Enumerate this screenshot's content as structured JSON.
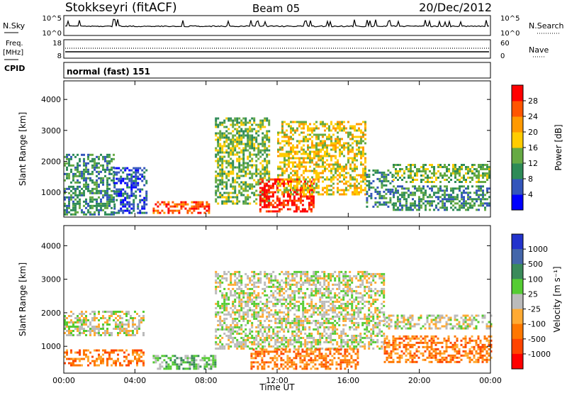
{
  "header": {
    "station": "Stokkseyri (fitACF)",
    "beam": "Beam 05",
    "date": "20/Dec/2012"
  },
  "top_panels": {
    "nsky_label": "N.Sky",
    "nsky_ticks": [
      "10^5",
      "10^0"
    ],
    "nsearch_label": "N.Search",
    "nsearch_ticks": [
      "10^5",
      "10^0"
    ],
    "freq_label": "Freq.",
    "freq_unit": "[MHz]",
    "freq_ticks": [
      "18",
      "8"
    ],
    "nave_label": "Nave",
    "nave_ticks": [
      "60",
      "0"
    ],
    "cpid_label": "CPID",
    "cpid_value": "normal (fast) 151"
  },
  "colors": {
    "power": [
      "#0000ff",
      "#3355bb",
      "#2e8b57",
      "#66aa44",
      "#ffcc00",
      "#ff9900",
      "#ff5500",
      "#ff0000"
    ],
    "velocity": [
      "#2233cc",
      "#4466aa",
      "#3a8a5a",
      "#55cc33",
      "#bbbbbb",
      "#ffaa33",
      "#ff7700",
      "#ff4400",
      "#ff0000"
    ]
  },
  "chart_data": [
    {
      "type": "heatmap",
      "name": "power",
      "ylabel": "Slant Range [km]",
      "yticks": [
        "1000",
        "2000",
        "3000",
        "4000"
      ],
      "ylim": [
        200,
        4600
      ],
      "xlim": [
        0,
        24
      ],
      "colorbar_label": "Power [dB]",
      "colorbar_ticks": [
        "4",
        "8",
        "12",
        "16",
        "20",
        "24",
        "28"
      ],
      "colorbar_range": [
        0,
        32
      ],
      "regions": [
        {
          "t0": 0.0,
          "t1": 2.8,
          "r0": 250,
          "r1": 2200,
          "level": 2
        },
        {
          "t0": 2.8,
          "t1": 4.6,
          "r0": 300,
          "r1": 1800,
          "level": 1
        },
        {
          "t0": 5.0,
          "t1": 8.2,
          "r0": 300,
          "r1": 700,
          "level": 6
        },
        {
          "t0": 8.5,
          "t1": 11.5,
          "r0": 600,
          "r1": 3400,
          "level": 3
        },
        {
          "t0": 11.0,
          "t1": 14.0,
          "r0": 350,
          "r1": 1400,
          "level": 7
        },
        {
          "t0": 12.0,
          "t1": 17.0,
          "r0": 900,
          "r1": 3300,
          "level": 4
        },
        {
          "t0": 17.0,
          "t1": 18.5,
          "r0": 500,
          "r1": 1700,
          "level": 2
        },
        {
          "t0": 18.5,
          "t1": 24.0,
          "r0": 1300,
          "r1": 1900,
          "level": 3
        },
        {
          "t0": 18.5,
          "t1": 24.0,
          "r0": 400,
          "r1": 1200,
          "level": 2
        }
      ]
    },
    {
      "type": "heatmap",
      "name": "velocity",
      "ylabel": "Slant Range [km]",
      "yticks": [
        "1000",
        "2000",
        "3000",
        "4000"
      ],
      "ylim": [
        200,
        4600
      ],
      "xlim": [
        0,
        24
      ],
      "xticks": [
        "00:00",
        "04:00",
        "08:00",
        "12:00",
        "16:00",
        "20:00",
        "00:00"
      ],
      "xlabel": "Time UT",
      "colorbar_label": "Velocity [m s⁻¹]",
      "colorbar_ticks": [
        "1000",
        "500",
        "100",
        "25",
        "-25",
        "-100",
        "-500",
        "-1000"
      ],
      "regions": [
        {
          "t0": 0.0,
          "t1": 4.5,
          "r0": 400,
          "r1": 900,
          "level": 6
        },
        {
          "t0": 0.0,
          "t1": 4.5,
          "r0": 1300,
          "r1": 2000,
          "level": 4
        },
        {
          "t0": 5.0,
          "t1": 8.5,
          "r0": 300,
          "r1": 700,
          "level": 3
        },
        {
          "t0": 8.5,
          "t1": 18.0,
          "r0": 900,
          "r1": 3200,
          "level": 4
        },
        {
          "t0": 10.5,
          "t1": 16.5,
          "r0": 300,
          "r1": 900,
          "level": 6
        },
        {
          "t0": 18.0,
          "t1": 24.0,
          "r0": 1500,
          "r1": 1900,
          "level": 4
        },
        {
          "t0": 18.0,
          "t1": 24.0,
          "r0": 500,
          "r1": 1300,
          "level": 6
        }
      ]
    }
  ]
}
